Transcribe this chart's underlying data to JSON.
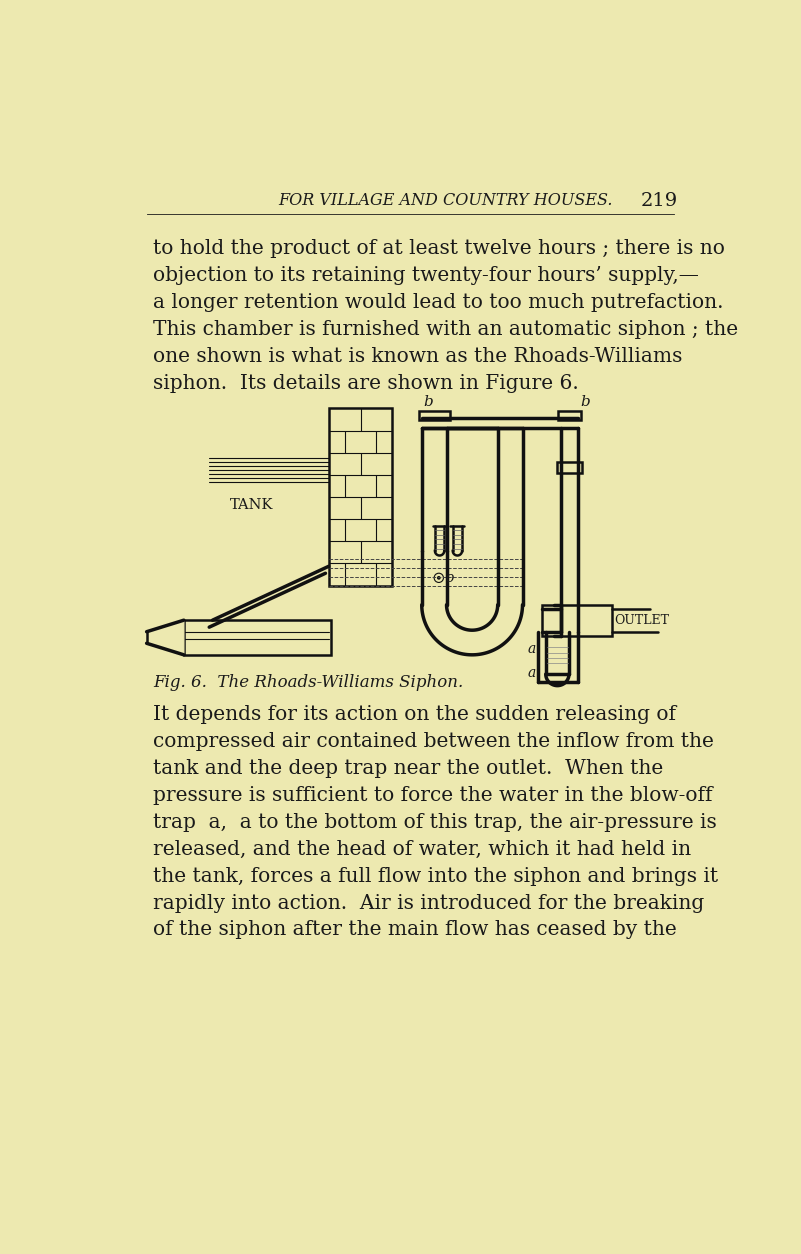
{
  "bg_color": "#ede9b0",
  "header_text": "FOR VILLAGE AND COUNTRY HOUSES.",
  "header_page": "219",
  "para1": "to hold the product of at least twelve hours ; there is no",
  "para2": "objection to its retaining twenty-four hours’ supply,—",
  "para3": "a longer retention would lead to too much putrefaction.",
  "para4": "This chamber is furnished with an automatic siphon ; the",
  "para5": "one shown is what is known as the Rhoads-Williams",
  "para6": "siphon.  Its details are shown in Figure 6.",
  "caption": "Fig. 6.  The Rhoads-Williams Siphon.",
  "body1": "It depends for its action on the sudden releasing of",
  "body2": "compressed air contained between the inflow from the",
  "body3": "tank and the deep trap near the outlet.  When the",
  "body4": "pressure is sufficient to force the water in the blow-off",
  "body5": "trap  a,  a to the bottom of this trap, the air-pressure is",
  "body6": "released, and the head of water, which it had held in",
  "body7": "the tank, forces a full flow into the siphon and brings it",
  "body8": "rapidly into action.  Air is introduced for the breaking",
  "body9": "of the siphon after the main flow has ceased by the",
  "text_color": "#1a1a1a",
  "line_color": "#111111",
  "font_size_body": 14.5,
  "font_size_header": 11.5
}
